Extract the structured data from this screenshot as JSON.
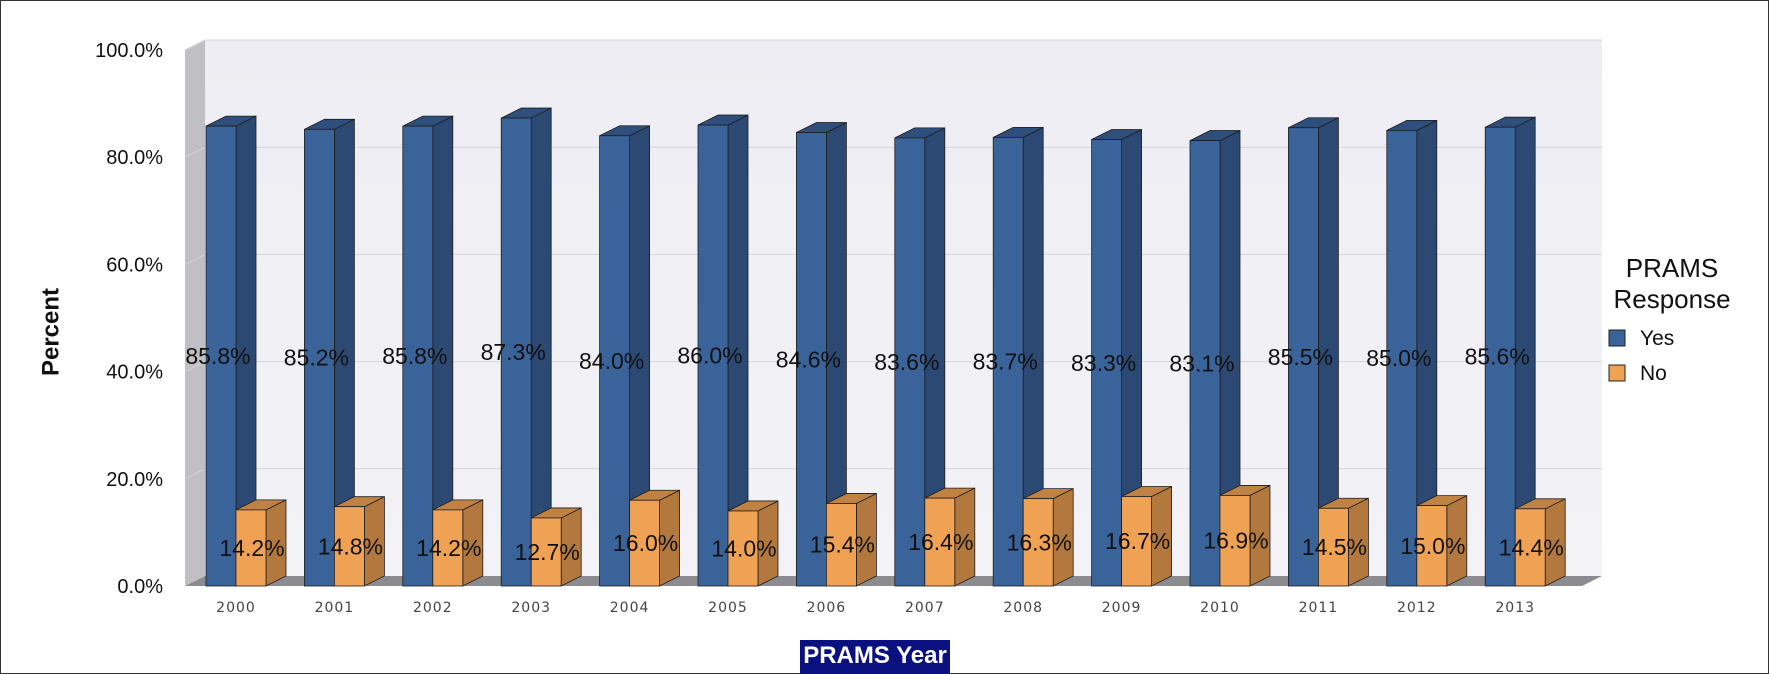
{
  "chart_data": {
    "type": "bar",
    "categories": [
      "2000",
      "2001",
      "2002",
      "2003",
      "2004",
      "2005",
      "2006",
      "2007",
      "2008",
      "2009",
      "2010",
      "2011",
      "2012",
      "2013"
    ],
    "series": [
      {
        "name": "Yes",
        "color": "#3a639a",
        "values": [
          85.8,
          85.2,
          85.8,
          87.3,
          84.0,
          86.0,
          84.6,
          83.6,
          83.7,
          83.3,
          83.1,
          85.5,
          85.0,
          85.6
        ],
        "labels": [
          "85.8%",
          "85.2%",
          "85.8%",
          "87.3%",
          "84.0%",
          "86.0%",
          "84.6%",
          "83.6%",
          "83.7%",
          "83.3%",
          "83.1%",
          "85.5%",
          "85.0%",
          "85.6%"
        ]
      },
      {
        "name": "No",
        "color": "#f0a254",
        "values": [
          14.2,
          14.8,
          14.2,
          12.7,
          16.0,
          14.0,
          15.4,
          16.4,
          16.3,
          16.7,
          16.9,
          14.5,
          15.0,
          14.4
        ],
        "labels": [
          "14.2%",
          "14.8%",
          "14.2%",
          "12.7%",
          "16.0%",
          "14.0%",
          "15.4%",
          "16.4%",
          "16.3%",
          "16.7%",
          "16.9%",
          "14.5%",
          "15.0%",
          "14.4%"
        ]
      }
    ],
    "yticks": [
      "0.0%",
      "20.0%",
      "40.0%",
      "60.0%",
      "80.0%",
      "100.0%"
    ],
    "ylim": [
      0,
      100
    ],
    "ylabel": "Percent",
    "xlabel": "PRAMS Year",
    "legend_title": "PRAMS Response",
    "legend_title_lines": [
      "PRAMS",
      "Response"
    ],
    "legend_position": "right",
    "grid": true,
    "three_d": true
  }
}
